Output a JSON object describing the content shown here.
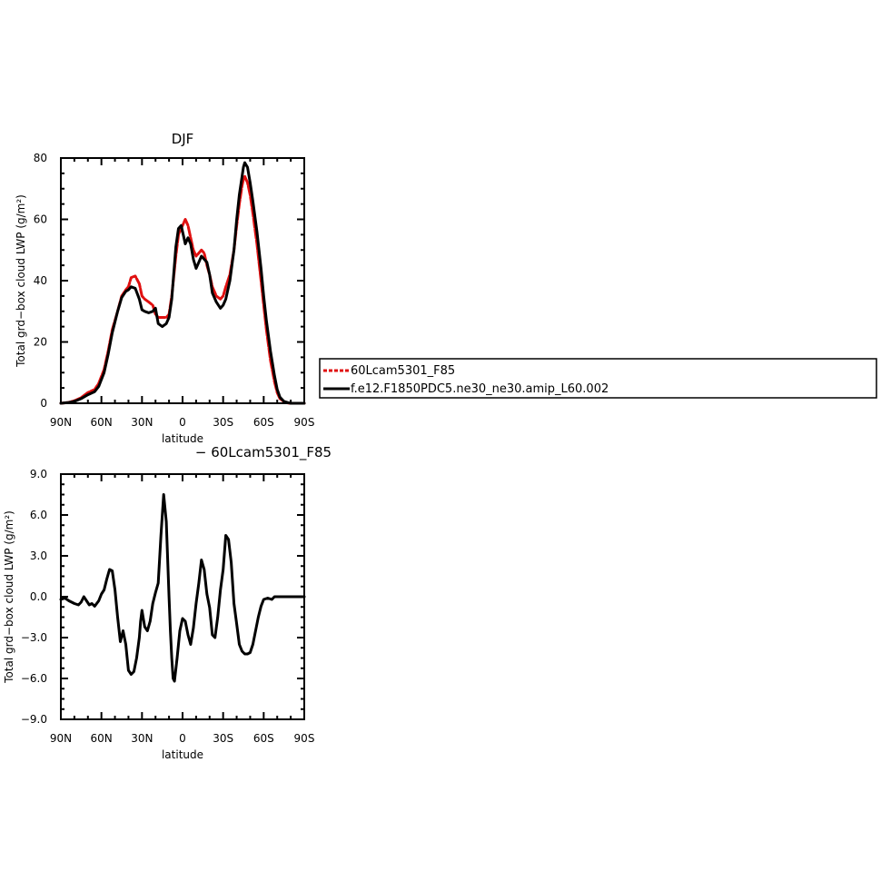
{
  "colors": {
    "ref": "#e01010",
    "cntl": "#000000"
  },
  "chart_data": [
    {
      "type": "line",
      "title": "DJF",
      "xlabel": "latitude",
      "ylabel": "Total grd−box cloud LWP (g/m²)",
      "xlim": [
        90,
        -90
      ],
      "ylim": [
        0,
        80
      ],
      "xticks": [
        90,
        60,
        30,
        0,
        -30,
        -60,
        -90
      ],
      "xtick_labels": [
        "90N",
        "60N",
        "30N",
        "0",
        "30S",
        "60S",
        "90S"
      ],
      "yticks": [
        0,
        20,
        40,
        60,
        80
      ],
      "ytick_labels": [
        "0",
        "20",
        "40",
        "60",
        "80"
      ],
      "legend_position": "right",
      "series": [
        {
          "name": "60Lcam5301_F85",
          "color": "#e01010",
          "style": "dashed",
          "x": [
            90,
            85,
            80,
            75,
            70,
            65,
            62,
            58,
            55,
            52,
            48,
            45,
            42,
            40,
            38,
            35,
            32,
            30,
            28,
            25,
            22,
            20,
            18,
            15,
            12,
            10,
            8,
            5,
            3,
            1,
            0,
            -2,
            -4,
            -6,
            -8,
            -10,
            -12,
            -14,
            -16,
            -18,
            -20,
            -22,
            -25,
            -28,
            -30,
            -32,
            -35,
            -38,
            -40,
            -42,
            -44,
            -45,
            -46,
            -48,
            -50,
            -52,
            -55,
            -58,
            -60,
            -62,
            -65,
            -68,
            -70,
            -72,
            -75,
            -78,
            -80,
            -82,
            -85,
            -90
          ],
          "y": [
            0,
            0.2,
            0.8,
            1.8,
            3.5,
            4.5,
            6.5,
            11,
            17,
            24,
            30,
            35,
            37,
            38,
            41,
            41.5,
            39,
            35,
            34,
            33,
            32,
            29,
            28,
            28,
            28,
            29,
            35,
            48,
            55,
            57,
            58,
            60,
            58,
            54,
            50,
            48,
            49,
            50,
            49,
            45,
            42,
            38,
            35,
            34,
            35,
            38,
            42,
            50,
            58,
            65,
            71,
            73,
            74,
            72,
            68,
            62,
            52,
            40,
            32,
            24,
            14,
            7,
            3.5,
            1.5,
            0.5,
            0.1,
            0,
            0,
            0,
            0
          ]
        },
        {
          "name": "f.e12.F1850PDC5.ne30_ne30.amip_L60.002",
          "color": "#000000",
          "style": "solid",
          "x": [
            90,
            85,
            80,
            75,
            70,
            65,
            62,
            58,
            55,
            52,
            48,
            45,
            42,
            40,
            38,
            35,
            32,
            30,
            28,
            25,
            22,
            20,
            18,
            15,
            12,
            10,
            8,
            5,
            3,
            1,
            0,
            -2,
            -4,
            -6,
            -8,
            -10,
            -12,
            -14,
            -16,
            -18,
            -20,
            -22,
            -25,
            -28,
            -30,
            -32,
            -35,
            -38,
            -40,
            -42,
            -44,
            -45,
            -46,
            -48,
            -50,
            -52,
            -55,
            -58,
            -60,
            -62,
            -65,
            -68,
            -70,
            -72,
            -75,
            -78,
            -80,
            -82,
            -85,
            -90
          ],
          "y": [
            0,
            0.2,
            0.6,
            1.5,
            2.8,
            3.8,
            5.5,
            10,
            16,
            23,
            30,
            34.5,
            36.5,
            37,
            38,
            37.5,
            34,
            30.5,
            30,
            29.5,
            30,
            31,
            26,
            25,
            26,
            28,
            34,
            51,
            57,
            58,
            56,
            52,
            54,
            52,
            47,
            44,
            46,
            48,
            47,
            46,
            42,
            36,
            33,
            31,
            32,
            34,
            40,
            50,
            60,
            68,
            74,
            77,
            78.5,
            77,
            72,
            66,
            56,
            44,
            35,
            27,
            17,
            9,
            4.5,
            2,
            0.6,
            0.2,
            0,
            0,
            0,
            0
          ]
        }
      ]
    },
    {
      "type": "line",
      "title": "− 60Lcam5301_F85",
      "xlabel": "latitude",
      "ylabel": "Total grd−box cloud LWP (g/m²)",
      "xlim": [
        90,
        -90
      ],
      "ylim": [
        -9,
        9
      ],
      "xticks": [
        90,
        60,
        30,
        0,
        -30,
        -60,
        -90
      ],
      "xtick_labels": [
        "90N",
        "60N",
        "30N",
        "0",
        "30S",
        "60S",
        "90S"
      ],
      "yticks": [
        9,
        6,
        3,
        0,
        -3,
        -6,
        -9
      ],
      "ytick_labels": [
        "9.0",
        "6.0",
        "3.0",
        "0.0",
        "−3.0",
        "−6.0",
        "−9.0"
      ],
      "series": [
        {
          "color": "#000000",
          "style": "solid",
          "x": [
            90,
            87,
            84,
            80,
            77,
            75,
            73,
            71,
            69,
            67,
            65,
            62,
            60,
            58,
            56,
            54,
            52,
            50,
            48,
            46,
            44,
            42,
            40,
            38,
            36,
            34,
            32,
            31,
            30,
            28,
            26,
            24,
            22,
            20,
            18,
            16,
            14,
            12,
            10,
            9,
            8,
            7,
            6,
            4,
            2,
            0,
            -2,
            -4,
            -6,
            -8,
            -10,
            -12,
            -14,
            -16,
            -18,
            -20,
            -22,
            -24,
            -26,
            -28,
            -30,
            -32,
            -34,
            -36,
            -38,
            -40,
            -42,
            -44,
            -46,
            -48,
            -50,
            -52,
            -54,
            -56,
            -58,
            -60,
            -63,
            -66,
            -68,
            -70,
            -72,
            -74,
            -76,
            -78,
            -80,
            -84,
            -90
          ],
          "y": [
            -0.2,
            -0.1,
            -0.3,
            -0.5,
            -0.6,
            -0.4,
            0,
            -0.3,
            -0.6,
            -0.5,
            -0.7,
            -0.3,
            0.2,
            0.5,
            1.3,
            2,
            1.9,
            0.5,
            -1.5,
            -3.3,
            -2.5,
            -3.5,
            -5.4,
            -5.7,
            -5.5,
            -4.5,
            -3,
            -1.8,
            -1.0,
            -2.2,
            -2.5,
            -1.8,
            -0.5,
            0.3,
            1.0,
            4.5,
            7.5,
            5.5,
            0,
            -2.5,
            -4.5,
            -6.0,
            -6.2,
            -4.5,
            -2.5,
            -1.6,
            -1.8,
            -2.8,
            -3.5,
            -2.3,
            -0.5,
            1.0,
            2.7,
            2.0,
            0.2,
            -0.8,
            -2.8,
            -3.0,
            -1.5,
            0.5,
            2.0,
            4.5,
            4.2,
            2.5,
            -0.5,
            -2.0,
            -3.5,
            -4.0,
            -4.2,
            -4.2,
            -4.1,
            -3.5,
            -2.5,
            -1.5,
            -0.7,
            -0.2,
            -0.1,
            -0.2,
            0,
            0,
            0,
            0,
            0,
            0,
            0,
            0,
            0
          ]
        }
      ]
    }
  ]
}
